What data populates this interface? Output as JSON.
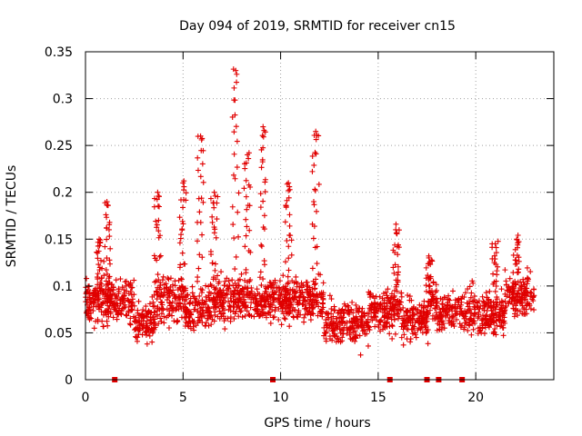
{
  "chart_data": {
    "type": "scatter",
    "title": "Day 094 of 2019, SRMTID for receiver cn15",
    "xlabel": "GPS time / hours",
    "ylabel": "SRMTID / TECUs",
    "xlim": [
      0,
      24
    ],
    "ylim": [
      0,
      0.35
    ],
    "xticks": [
      0,
      5,
      10,
      15,
      20
    ],
    "xtick_labels": [
      "0",
      "5",
      "10",
      "15",
      "20"
    ],
    "yticks": [
      0,
      0.05,
      0.1,
      0.15,
      0.2,
      0.25,
      0.3,
      0.35
    ],
    "ytick_labels": [
      "0",
      "0.05",
      "0.1",
      "0.15",
      "0.2",
      "0.25",
      "0.3",
      "0.35"
    ],
    "grid": true,
    "marker": "+",
    "color": "#e00000",
    "x_range_of_points": [
      0,
      23
    ],
    "y_typical_range": [
      0.03,
      0.15
    ],
    "peaks": [
      {
        "x": 0.7,
        "y": 0.15
      },
      {
        "x": 1.1,
        "y": 0.19
      },
      {
        "x": 3.7,
        "y": 0.2
      },
      {
        "x": 5.0,
        "y": 0.21
      },
      {
        "x": 5.9,
        "y": 0.26
      },
      {
        "x": 6.6,
        "y": 0.2
      },
      {
        "x": 7.7,
        "y": 0.33
      },
      {
        "x": 8.3,
        "y": 0.24
      },
      {
        "x": 9.1,
        "y": 0.27
      },
      {
        "x": 10.4,
        "y": 0.21
      },
      {
        "x": 11.8,
        "y": 0.265
      },
      {
        "x": 15.9,
        "y": 0.16
      },
      {
        "x": 17.6,
        "y": 0.13
      },
      {
        "x": 21.0,
        "y": 0.145
      },
      {
        "x": 22.1,
        "y": 0.15
      }
    ],
    "baseline_markers_x": [
      1.5,
      9.6,
      15.6,
      17.5,
      18.1,
      19.3
    ]
  }
}
